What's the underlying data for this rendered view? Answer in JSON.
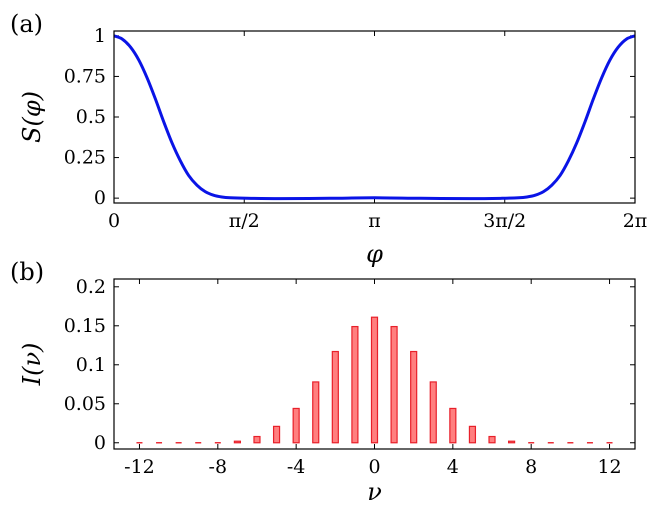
{
  "chart_data": [
    {
      "type": "line",
      "panel_label": "(a)",
      "xlabel": "φ",
      "ylabel": "S(φ)",
      "xlim": [
        0,
        6.2832
      ],
      "ylim": [
        -0.03,
        1.03
      ],
      "grid": false,
      "x_ticks": [
        {
          "value": 0,
          "label": "0"
        },
        {
          "value": 1.5708,
          "label": "π/2"
        },
        {
          "value": 3.1416,
          "label": "π"
        },
        {
          "value": 4.7124,
          "label": "3π/2"
        },
        {
          "value": 6.2832,
          "label": "2π"
        }
      ],
      "y_ticks": [
        {
          "value": 0,
          "label": "0"
        },
        {
          "value": 0.25,
          "label": "0.25"
        },
        {
          "value": 0.5,
          "label": "0.5"
        },
        {
          "value": 0.75,
          "label": "0.75"
        },
        {
          "value": 1,
          "label": "1"
        }
      ],
      "series": [
        {
          "color": "#0a14e6",
          "x": [
            0,
            0.1,
            0.2,
            0.3,
            0.4,
            0.5,
            0.6,
            0.7,
            0.8,
            0.9,
            1.0,
            1.1,
            1.2,
            1.3,
            1.4,
            1.6,
            2.0,
            2.6,
            3.1416,
            3.7,
            4.3,
            4.68,
            4.88,
            4.98,
            5.08,
            5.18,
            5.28,
            5.38,
            5.48,
            5.58,
            5.68,
            5.78,
            5.88,
            5.98,
            6.08,
            6.18,
            6.2832
          ],
          "y": [
            1.0,
            0.98,
            0.93,
            0.85,
            0.74,
            0.61,
            0.47,
            0.34,
            0.23,
            0.14,
            0.08,
            0.04,
            0.018,
            0.007,
            0.002,
            -0.001,
            -0.003,
            -0.001,
            0.002,
            -0.001,
            -0.003,
            -0.001,
            0.002,
            0.007,
            0.018,
            0.04,
            0.08,
            0.14,
            0.23,
            0.34,
            0.47,
            0.61,
            0.74,
            0.85,
            0.93,
            0.98,
            1.0
          ]
        }
      ]
    },
    {
      "type": "bar",
      "panel_label": "(b)",
      "xlabel": "ν",
      "ylabel": "I(ν)",
      "xlim": [
        -13.3,
        13.3
      ],
      "ylim": [
        -0.008,
        0.21
      ],
      "grid": false,
      "x_ticks": [
        {
          "value": -12,
          "label": "-12"
        },
        {
          "value": -8,
          "label": "-8"
        },
        {
          "value": -4,
          "label": "-4"
        },
        {
          "value": 0,
          "label": "0"
        },
        {
          "value": 4,
          "label": "4"
        },
        {
          "value": 8,
          "label": "8"
        },
        {
          "value": 12,
          "label": "12"
        }
      ],
      "y_ticks": [
        {
          "value": 0,
          "label": "0"
        },
        {
          "value": 0.05,
          "label": "0.05"
        },
        {
          "value": 0.1,
          "label": "0.1"
        },
        {
          "value": 0.15,
          "label": "0.15"
        },
        {
          "value": 0.2,
          "label": "0.2"
        }
      ],
      "bar_fill": "#ff7f7f",
      "bar_stroke": "#e8202a",
      "x": [
        -12,
        -11,
        -10,
        -9,
        -8,
        -7,
        -6,
        -5,
        -4,
        -3,
        -2,
        -1,
        0,
        1,
        2,
        3,
        4,
        5,
        6,
        7,
        8,
        9,
        10,
        11,
        12
      ],
      "values": [
        0.0,
        0.0,
        0.0,
        0.0,
        0.0005,
        0.002,
        0.008,
        0.021,
        0.044,
        0.078,
        0.117,
        0.149,
        0.161,
        0.149,
        0.117,
        0.078,
        0.044,
        0.021,
        0.008,
        0.002,
        0.0005,
        0.0,
        0.0,
        0.0,
        0.0
      ]
    }
  ]
}
